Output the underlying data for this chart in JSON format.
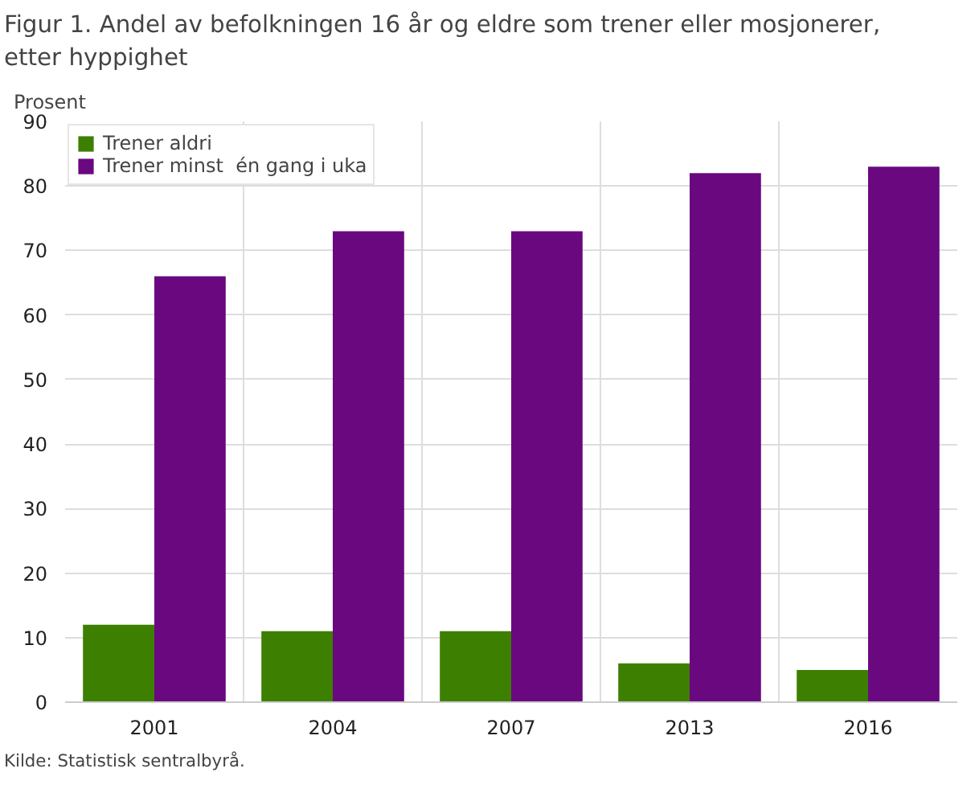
{
  "chart_data": {
    "type": "bar",
    "title": "Figur 1. Andel av befolkningen 16 år og eldre som trener eller mosjonerer, etter hyppighet",
    "ylabel": "Prosent",
    "categories": [
      "2001",
      "2004",
      "2007",
      "2013",
      "2016"
    ],
    "series": [
      {
        "name": "Trener aldri",
        "color": "#3d7f00",
        "values": [
          12,
          11,
          11,
          6,
          5
        ]
      },
      {
        "name": "Trener minst  én gang i uka",
        "color": "#6a0880",
        "values": [
          66,
          73,
          73,
          82,
          83
        ]
      }
    ],
    "ylim": [
      0,
      90
    ],
    "yticks": [
      0,
      10,
      20,
      30,
      40,
      50,
      60,
      70,
      80,
      90
    ],
    "grid": true,
    "legend": "top left",
    "annotations": [
      "Kilde: Statistisk sentralbyrå."
    ]
  }
}
